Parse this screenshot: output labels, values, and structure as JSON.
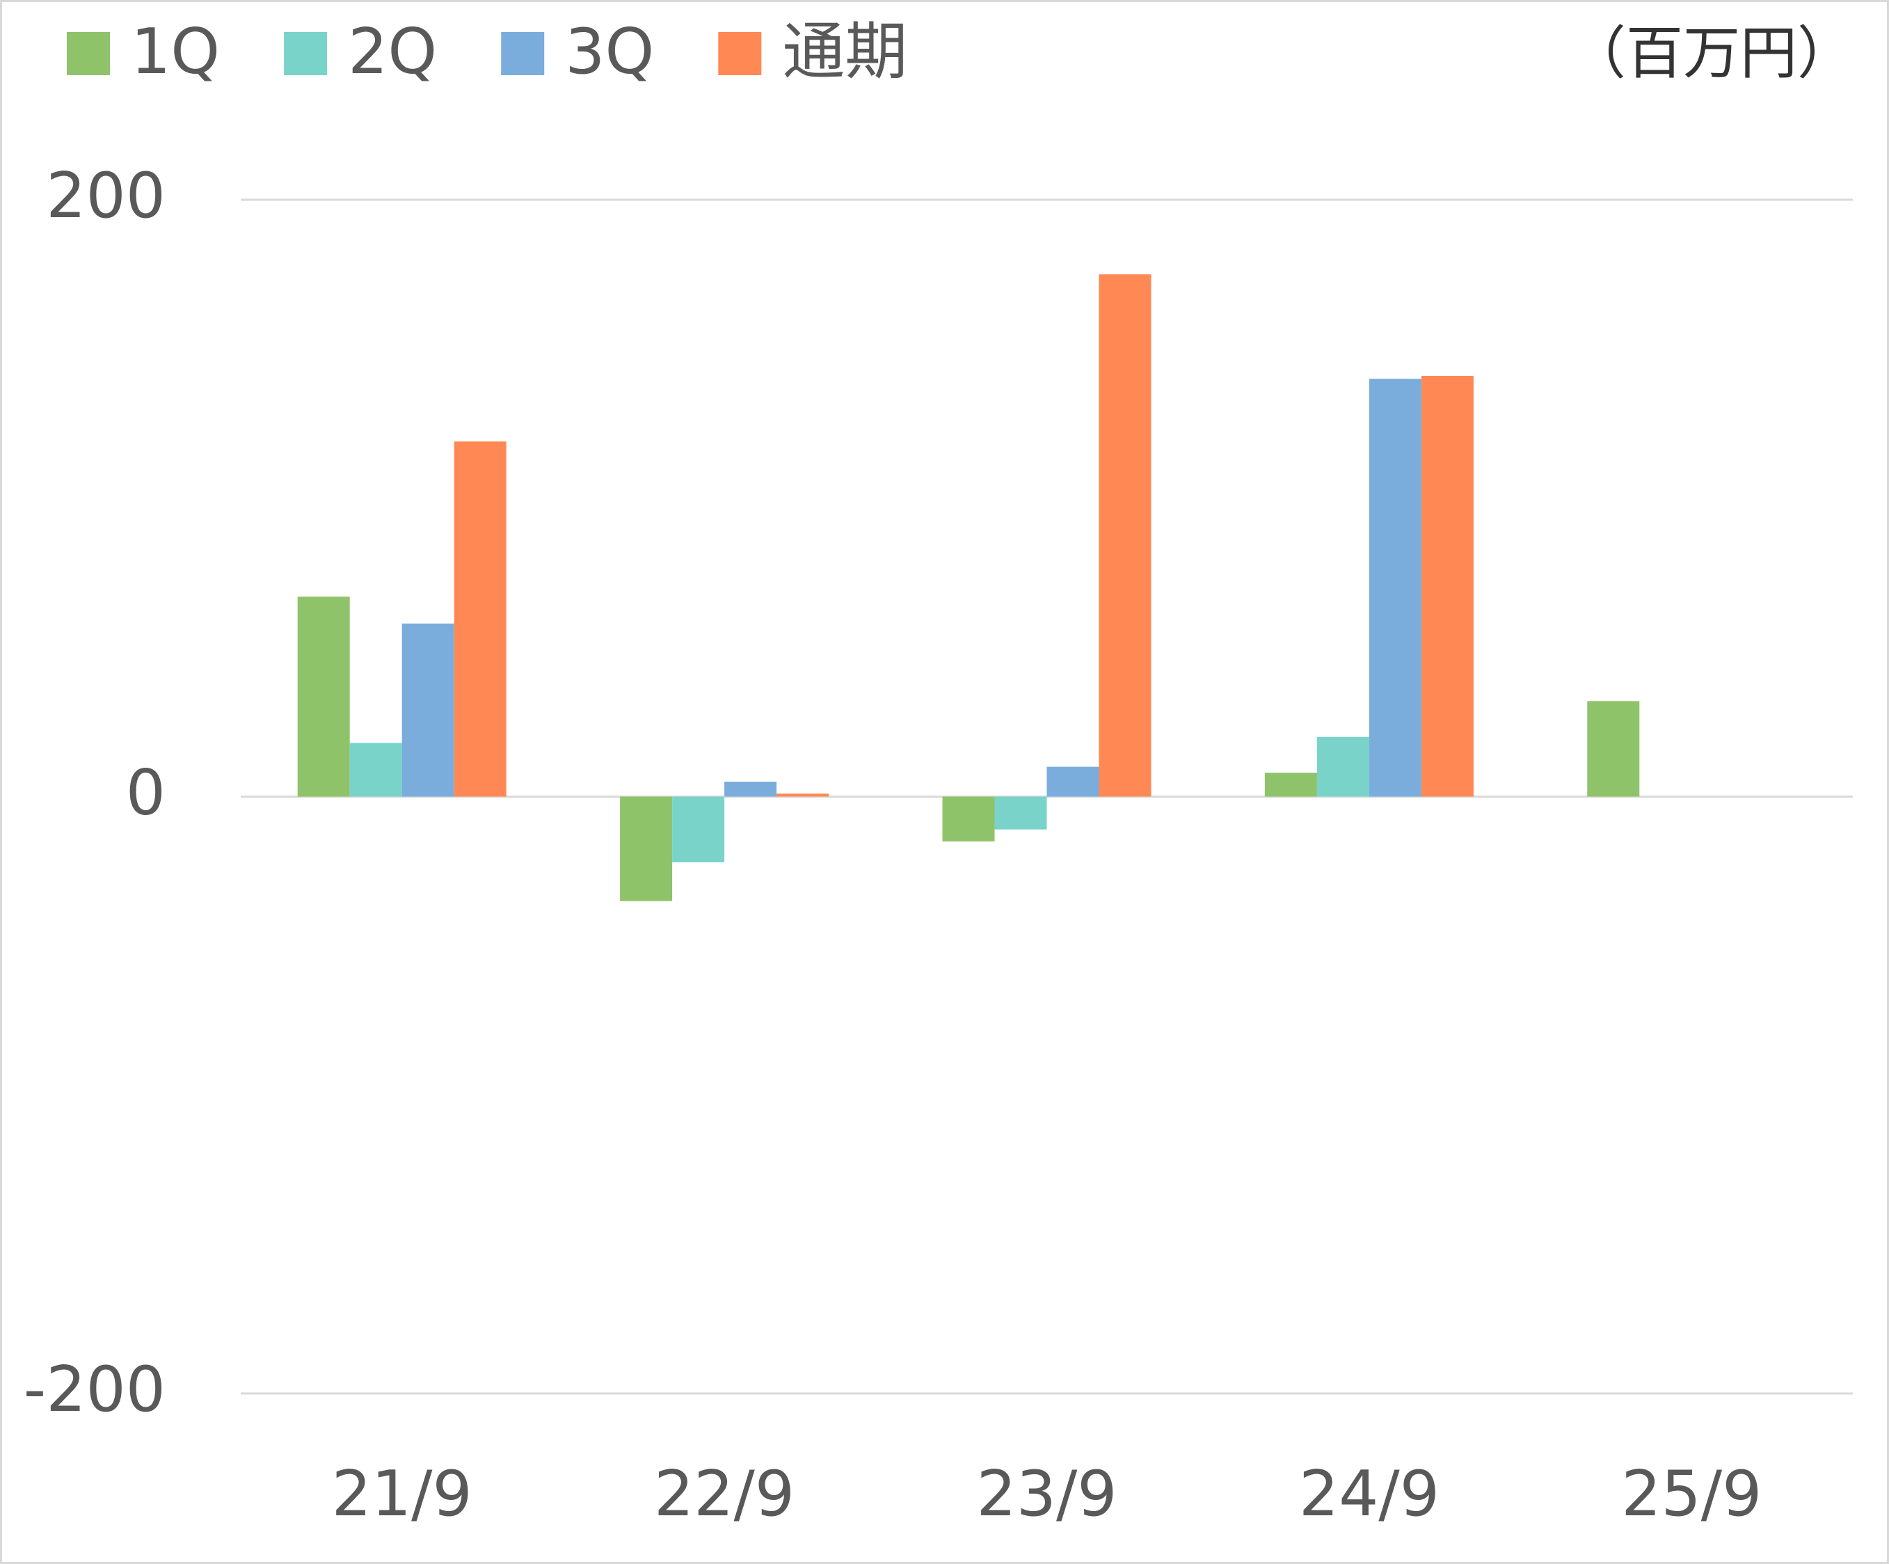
{
  "chart_data": {
    "type": "bar",
    "unit_label": "（百万円）",
    "categories": [
      "21/9",
      "22/9",
      "23/9",
      "24/9",
      "25/9"
    ],
    "series": [
      {
        "name": "1Q",
        "color": "#8fc36a",
        "values": [
          67,
          -35,
          -15,
          8,
          32
        ]
      },
      {
        "name": "2Q",
        "color": "#79d3c9",
        "values": [
          18,
          -22,
          -11,
          20,
          null
        ]
      },
      {
        "name": "3Q",
        "color": "#7aaddc",
        "values": [
          58,
          5,
          10,
          140,
          null
        ]
      },
      {
        "name": "通期",
        "color": "#ff8855",
        "values": [
          119,
          1,
          175,
          141,
          null
        ]
      }
    ],
    "ylim": [
      -200,
      200
    ],
    "yticks": [
      -200,
      0,
      200
    ],
    "grid": true,
    "legend": "top-left"
  }
}
